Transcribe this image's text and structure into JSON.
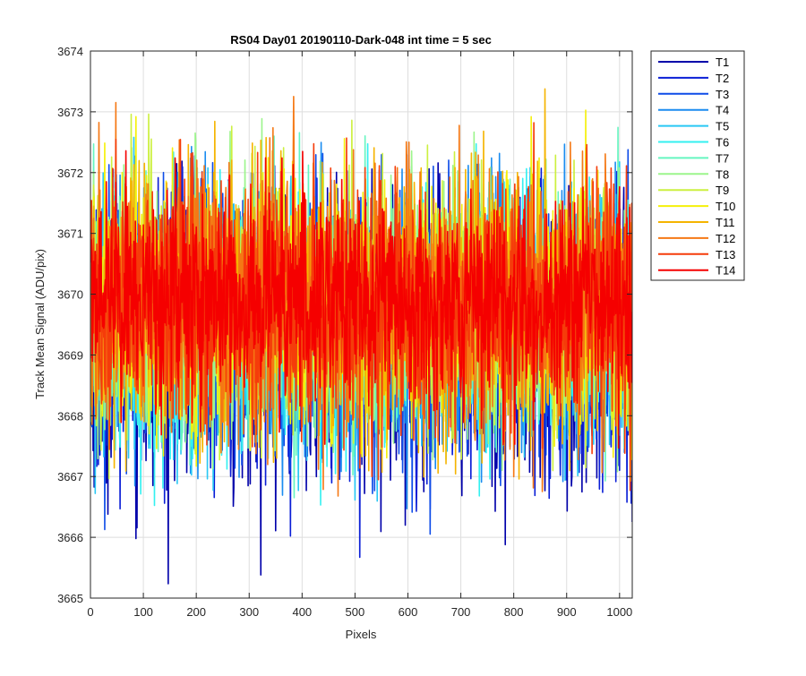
{
  "chart_data": {
    "type": "line",
    "title": "RS04 Day01 20190110-Dark-048 int time = 5 sec",
    "xlabel": "Pixels",
    "ylabel": "Track Mean Signal (ADU/pix)",
    "xlim": [
      0,
      1024
    ],
    "ylim": [
      3665,
      3674
    ],
    "x_ticks": [
      0,
      100,
      200,
      300,
      400,
      500,
      600,
      700,
      800,
      900,
      1000
    ],
    "y_ticks": [
      3665,
      3666,
      3667,
      3668,
      3669,
      3670,
      3671,
      3672,
      3673,
      3674
    ],
    "grid": true,
    "legend_position": "outside-top-right",
    "x_range": [
      1,
      1024
    ],
    "series": [
      {
        "name": "T1",
        "color": "#0000aa",
        "mean": 3669.3,
        "min": 3665.0,
        "max": 3672.2
      },
      {
        "name": "T2",
        "color": "#0a1ed6",
        "mean": 3669.35,
        "min": 3665.4,
        "max": 3672.1
      },
      {
        "name": "T3",
        "color": "#0e4ce8",
        "mean": 3669.4,
        "min": 3665.9,
        "max": 3672.4
      },
      {
        "name": "T4",
        "color": "#1a8cf0",
        "mean": 3669.5,
        "min": 3666.1,
        "max": 3672.5
      },
      {
        "name": "T5",
        "color": "#29c8f4",
        "mean": 3669.55,
        "min": 3666.3,
        "max": 3672.6
      },
      {
        "name": "T6",
        "color": "#33f0f0",
        "mean": 3669.6,
        "min": 3666.5,
        "max": 3672.7
      },
      {
        "name": "T7",
        "color": "#66f5c0",
        "mean": 3669.65,
        "min": 3666.6,
        "max": 3672.8
      },
      {
        "name": "T8",
        "color": "#9cf58c",
        "mean": 3669.7,
        "min": 3666.7,
        "max": 3672.9
      },
      {
        "name": "T9",
        "color": "#ccf040",
        "mean": 3669.75,
        "min": 3666.8,
        "max": 3673.0
      },
      {
        "name": "T10",
        "color": "#f5f00a",
        "mean": 3669.8,
        "min": 3666.9,
        "max": 3673.1
      },
      {
        "name": "T11",
        "color": "#f5b400",
        "mean": 3669.8,
        "min": 3666.9,
        "max": 3673.5
      },
      {
        "name": "T12",
        "color": "#f57814",
        "mean": 3669.85,
        "min": 3666.6,
        "max": 3673.3
      },
      {
        "name": "T13",
        "color": "#f53c0a",
        "mean": 3669.85,
        "min": 3666.5,
        "max": 3672.9
      },
      {
        "name": "T14",
        "color": "#f50000",
        "mean": 3669.9,
        "min": 3667.3,
        "max": 3672.4
      }
    ]
  }
}
